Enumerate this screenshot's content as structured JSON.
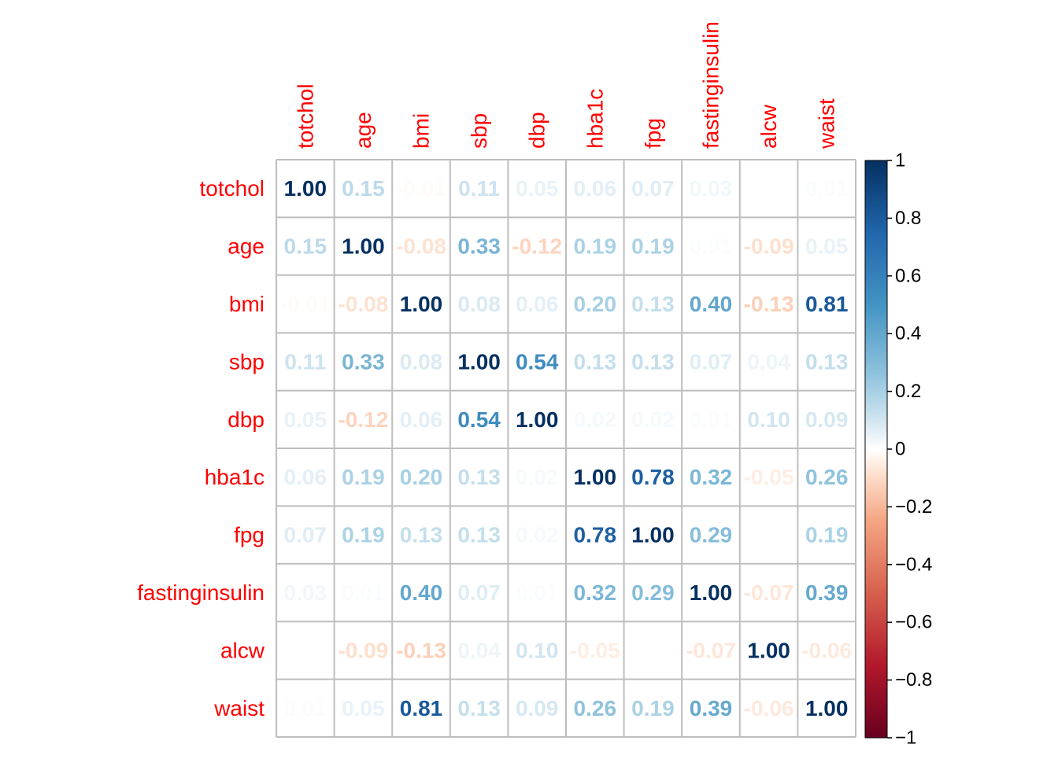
{
  "chart_data": {
    "type": "heatmap",
    "subtype": "correlation-matrix",
    "variables": [
      "totchol",
      "age",
      "bmi",
      "sbp",
      "dbp",
      "hba1c",
      "fpg",
      "fastinginsulin",
      "alcw",
      "waist"
    ],
    "matrix": [
      [
        1.0,
        0.15,
        -0.01,
        0.11,
        0.05,
        0.06,
        0.07,
        0.03,
        0.0,
        0.01
      ],
      [
        0.15,
        1.0,
        -0.08,
        0.33,
        -0.12,
        0.19,
        0.19,
        0.01,
        -0.09,
        0.05
      ],
      [
        -0.01,
        -0.08,
        1.0,
        0.08,
        0.06,
        0.2,
        0.13,
        0.4,
        -0.13,
        0.81
      ],
      [
        0.11,
        0.33,
        0.08,
        1.0,
        0.54,
        0.13,
        0.13,
        0.07,
        0.04,
        0.13
      ],
      [
        0.05,
        -0.12,
        0.06,
        0.54,
        1.0,
        0.02,
        0.02,
        0.01,
        0.1,
        0.09
      ],
      [
        0.06,
        0.19,
        0.2,
        0.13,
        0.02,
        1.0,
        0.78,
        0.32,
        -0.05,
        0.26
      ],
      [
        0.07,
        0.19,
        0.13,
        0.13,
        0.02,
        0.78,
        1.0,
        0.29,
        0.0,
        0.19
      ],
      [
        0.03,
        0.01,
        0.4,
        0.07,
        0.01,
        0.32,
        0.29,
        1.0,
        -0.07,
        0.39
      ],
      [
        0.0,
        -0.09,
        -0.13,
        0.04,
        0.1,
        -0.05,
        0.0,
        -0.07,
        1.0,
        -0.06
      ],
      [
        0.01,
        0.05,
        0.81,
        0.13,
        0.09,
        0.26,
        0.19,
        0.39,
        -0.06,
        1.0
      ]
    ],
    "value_format": "2-decimal",
    "color_range": [
      -1,
      1
    ],
    "colorbar_ticks": [
      1,
      0.8,
      0.6,
      0.4,
      0.2,
      0,
      -0.2,
      -0.4,
      -0.6,
      -0.8,
      -1
    ],
    "colorbar_tick_labels": [
      "1",
      "0.8",
      "0.6",
      "0.4",
      "0.2",
      "0",
      "−0.2",
      "−0.4",
      "−0.6",
      "−0.8",
      "−1"
    ],
    "color_stops": [
      {
        "value": -1.0,
        "color": "#67001F"
      },
      {
        "value": -0.75,
        "color": "#B2182B"
      },
      {
        "value": -0.5,
        "color": "#D6604D"
      },
      {
        "value": -0.25,
        "color": "#F4A582"
      },
      {
        "value": -0.1,
        "color": "#FDDBC7"
      },
      {
        "value": 0.0,
        "color": "#FFFFFF"
      },
      {
        "value": 0.1,
        "color": "#D1E5F0"
      },
      {
        "value": 0.25,
        "color": "#92C5DE"
      },
      {
        "value": 0.5,
        "color": "#4393C3"
      },
      {
        "value": 0.75,
        "color": "#2166AC"
      },
      {
        "value": 1.0,
        "color": "#053061"
      }
    ],
    "label_color": "#FF0000",
    "grid_color": "#BEBEBE",
    "background": "#FFFFFF",
    "legend": "right"
  }
}
